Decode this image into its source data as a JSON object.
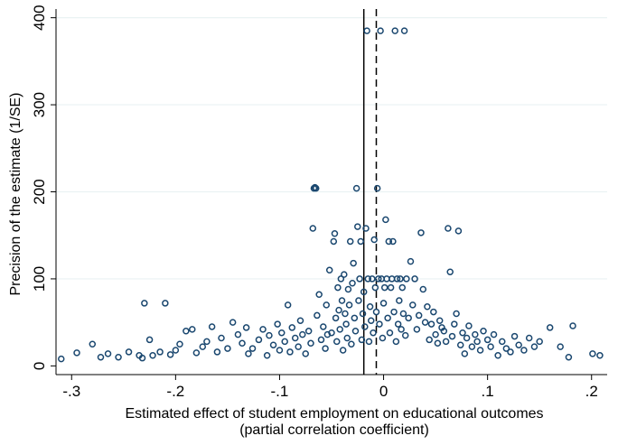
{
  "chart_data": {
    "type": "scatter",
    "title": "",
    "xlabel": "Estimated effect of student employment on educational outcomes",
    "xlabel_line2": "(partial correlation coefficient)",
    "ylabel": "Precision of the estimate (1/SE)",
    "xlim": [
      -0.315,
      0.215
    ],
    "ylim": [
      -10,
      410
    ],
    "x_ticks": [
      -0.3,
      -0.2,
      -0.1,
      0,
      0.1,
      0.2
    ],
    "x_tick_labels": [
      "-.3",
      "-.2",
      "-.1",
      "0",
      ".1",
      ".2"
    ],
    "y_ticks": [
      0,
      100,
      200,
      300,
      400
    ],
    "y_tick_labels": [
      "0",
      "100",
      "200",
      "300",
      "400"
    ],
    "grid": "horizontal",
    "marker": "hollow-circle",
    "marker_color": "#1a476f",
    "reference_lines": [
      {
        "x": -0.019,
        "style": "solid"
      },
      {
        "x": -0.007,
        "style": "dashed"
      }
    ],
    "points": [
      [
        -0.31,
        8
      ],
      [
        -0.295,
        15
      ],
      [
        -0.28,
        25
      ],
      [
        -0.272,
        10
      ],
      [
        -0.265,
        14
      ],
      [
        -0.255,
        10
      ],
      [
        -0.245,
        16
      ],
      [
        -0.235,
        12
      ],
      [
        -0.232,
        9
      ],
      [
        -0.23,
        72
      ],
      [
        -0.225,
        30
      ],
      [
        -0.222,
        12
      ],
      [
        -0.215,
        16
      ],
      [
        -0.21,
        72
      ],
      [
        -0.205,
        13
      ],
      [
        -0.2,
        18
      ],
      [
        -0.196,
        25
      ],
      [
        -0.19,
        40
      ],
      [
        -0.184,
        42
      ],
      [
        -0.18,
        15
      ],
      [
        -0.174,
        22
      ],
      [
        -0.17,
        28
      ],
      [
        -0.165,
        45
      ],
      [
        -0.16,
        16
      ],
      [
        -0.156,
        32
      ],
      [
        -0.15,
        20
      ],
      [
        -0.145,
        50
      ],
      [
        -0.14,
        36
      ],
      [
        -0.136,
        26
      ],
      [
        -0.132,
        44
      ],
      [
        -0.13,
        14
      ],
      [
        -0.126,
        20
      ],
      [
        -0.12,
        30
      ],
      [
        -0.116,
        42
      ],
      [
        -0.112,
        12
      ],
      [
        -0.11,
        35
      ],
      [
        -0.106,
        24
      ],
      [
        -0.102,
        48
      ],
      [
        -0.1,
        18
      ],
      [
        -0.098,
        38
      ],
      [
        -0.095,
        28
      ],
      [
        -0.092,
        70
      ],
      [
        -0.09,
        16
      ],
      [
        -0.088,
        44
      ],
      [
        -0.085,
        32
      ],
      [
        -0.082,
        22
      ],
      [
        -0.08,
        52
      ],
      [
        -0.078,
        36
      ],
      [
        -0.075,
        14
      ],
      [
        -0.072,
        40
      ],
      [
        -0.07,
        26
      ],
      [
        -0.068,
        158
      ],
      [
        -0.067,
        204
      ],
      [
        -0.066,
        205
      ],
      [
        -0.065,
        204
      ],
      [
        -0.064,
        58
      ],
      [
        -0.062,
        82
      ],
      [
        -0.06,
        30
      ],
      [
        -0.058,
        45
      ],
      [
        -0.056,
        20
      ],
      [
        -0.055,
        70
      ],
      [
        -0.054,
        36
      ],
      [
        -0.052,
        110
      ],
      [
        -0.05,
        38
      ],
      [
        -0.048,
        143
      ],
      [
        -0.047,
        152
      ],
      [
        -0.046,
        55
      ],
      [
        -0.045,
        28
      ],
      [
        -0.044,
        90
      ],
      [
        -0.043,
        64
      ],
      [
        -0.042,
        42
      ],
      [
        -0.041,
        100
      ],
      [
        -0.04,
        75
      ],
      [
        -0.039,
        18
      ],
      [
        -0.038,
        105
      ],
      [
        -0.037,
        60
      ],
      [
        -0.036,
        48
      ],
      [
        -0.035,
        32
      ],
      [
        -0.034,
        88
      ],
      [
        -0.033,
        70
      ],
      [
        -0.032,
        143
      ],
      [
        -0.031,
        25
      ],
      [
        -0.03,
        95
      ],
      [
        -0.029,
        118
      ],
      [
        -0.028,
        55
      ],
      [
        -0.027,
        40
      ],
      [
        -0.026,
        204
      ],
      [
        -0.025,
        160
      ],
      [
        -0.024,
        75
      ],
      [
        -0.023,
        100
      ],
      [
        -0.022,
        143
      ],
      [
        -0.021,
        30
      ],
      [
        -0.02,
        60
      ],
      [
        -0.019,
        85
      ],
      [
        -0.018,
        45
      ],
      [
        -0.017,
        158
      ],
      [
        -0.016,
        385
      ],
      [
        -0.015,
        100
      ],
      [
        -0.014,
        28
      ],
      [
        -0.013,
        68
      ],
      [
        -0.012,
        52
      ],
      [
        -0.011,
        100
      ],
      [
        -0.01,
        38
      ],
      [
        -0.009,
        145
      ],
      [
        -0.008,
        90
      ],
      [
        -0.007,
        62
      ],
      [
        -0.006,
        204
      ],
      [
        -0.005,
        100
      ],
      [
        -0.004,
        48
      ],
      [
        -0.003,
        385
      ],
      [
        -0.002,
        100
      ],
      [
        -0.001,
        32
      ],
      [
        0,
        72
      ],
      [
        0.001,
        90
      ],
      [
        0.002,
        168
      ],
      [
        0.003,
        100
      ],
      [
        0.004,
        55
      ],
      [
        0.005,
        143
      ],
      [
        0.006,
        38
      ],
      [
        0.007,
        90
      ],
      [
        0.008,
        100
      ],
      [
        0.009,
        143
      ],
      [
        0.01,
        62
      ],
      [
        0.011,
        385
      ],
      [
        0.012,
        28
      ],
      [
        0.013,
        100
      ],
      [
        0.014,
        48
      ],
      [
        0.015,
        75
      ],
      [
        0.016,
        100
      ],
      [
        0.017,
        42
      ],
      [
        0.018,
        90
      ],
      [
        0.019,
        60
      ],
      [
        0.02,
        385
      ],
      [
        0.021,
        35
      ],
      [
        0.022,
        100
      ],
      [
        0.024,
        55
      ],
      [
        0.026,
        120
      ],
      [
        0.028,
        70
      ],
      [
        0.03,
        100
      ],
      [
        0.032,
        42
      ],
      [
        0.034,
        58
      ],
      [
        0.036,
        153
      ],
      [
        0.038,
        88
      ],
      [
        0.04,
        50
      ],
      [
        0.042,
        68
      ],
      [
        0.044,
        30
      ],
      [
        0.046,
        48
      ],
      [
        0.048,
        62
      ],
      [
        0.05,
        36
      ],
      [
        0.052,
        26
      ],
      [
        0.054,
        52
      ],
      [
        0.056,
        44
      ],
      [
        0.058,
        40
      ],
      [
        0.06,
        28
      ],
      [
        0.062,
        158
      ],
      [
        0.064,
        108
      ],
      [
        0.066,
        34
      ],
      [
        0.068,
        48
      ],
      [
        0.07,
        60
      ],
      [
        0.072,
        155
      ],
      [
        0.074,
        24
      ],
      [
        0.076,
        38
      ],
      [
        0.078,
        14
      ],
      [
        0.08,
        32
      ],
      [
        0.082,
        46
      ],
      [
        0.085,
        22
      ],
      [
        0.088,
        36
      ],
      [
        0.09,
        28
      ],
      [
        0.093,
        18
      ],
      [
        0.096,
        40
      ],
      [
        0.1,
        30
      ],
      [
        0.103,
        22
      ],
      [
        0.106,
        36
      ],
      [
        0.11,
        12
      ],
      [
        0.114,
        28
      ],
      [
        0.118,
        20
      ],
      [
        0.122,
        16
      ],
      [
        0.126,
        34
      ],
      [
        0.13,
        24
      ],
      [
        0.135,
        18
      ],
      [
        0.14,
        32
      ],
      [
        0.145,
        22
      ],
      [
        0.15,
        28
      ],
      [
        0.16,
        44
      ],
      [
        0.17,
        22
      ],
      [
        0.178,
        10
      ],
      [
        0.182,
        46
      ],
      [
        0.201,
        14
      ],
      [
        0.208,
        12
      ]
    ]
  }
}
